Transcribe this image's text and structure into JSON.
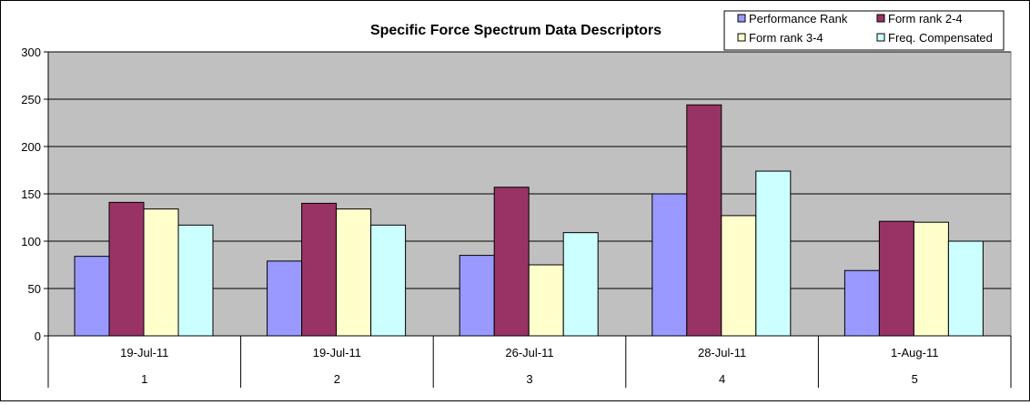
{
  "chart_data": {
    "type": "bar",
    "title": "Specific Force Spectrum Data Descriptors",
    "xlabel": "",
    "ylabel": "",
    "ylim": [
      0,
      300
    ],
    "yticks": [
      "0",
      "50",
      "100",
      "150",
      "200",
      "250",
      "300"
    ],
    "grid": true,
    "legend_position": "top-right",
    "categories": [
      {
        "date": "19-Jul-11",
        "index": "1"
      },
      {
        "date": "19-Jul-11",
        "index": "2"
      },
      {
        "date": "26-Jul-11",
        "index": "3"
      },
      {
        "date": "28-Jul-11",
        "index": "4"
      },
      {
        "date": "1-Aug-11",
        "index": "5"
      }
    ],
    "series": [
      {
        "name": "Performance Rank",
        "color": "#9999ff",
        "values": [
          84,
          79,
          85,
          150,
          69
        ]
      },
      {
        "name": "Form rank 2-4",
        "color": "#993366",
        "values": [
          141,
          140,
          157,
          244,
          121
        ]
      },
      {
        "name": "Form rank 3-4",
        "color": "#ffffcc",
        "values": [
          134,
          134,
          75,
          127,
          120
        ]
      },
      {
        "name": "Freq. Compensated",
        "color": "#ccffff",
        "values": [
          117,
          117,
          109,
          174,
          100
        ]
      }
    ],
    "plot_background": "#c0c0c0"
  }
}
